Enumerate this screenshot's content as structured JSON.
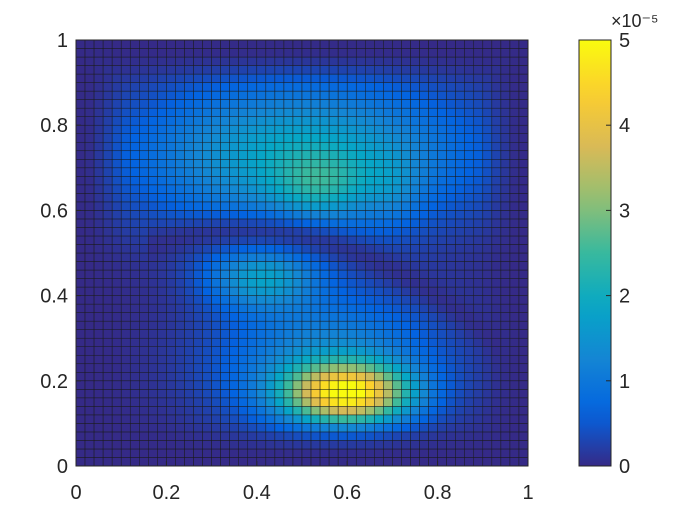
{
  "chart_data": {
    "type": "heatmap",
    "title": "",
    "xlabel": "",
    "ylabel": "",
    "xlim": [
      0,
      1
    ],
    "ylim": [
      0,
      1
    ],
    "x_ticks": [
      "0",
      "0.2",
      "0.4",
      "0.6",
      "0.8",
      "1"
    ],
    "y_ticks": [
      "0",
      "0.2",
      "0.4",
      "0.6",
      "0.8",
      "1"
    ],
    "grid": "50 x 50 mesh cells with dark edges",
    "colormap": "parula",
    "colorbar": {
      "position": "right",
      "range": [
        0,
        5e-05
      ],
      "ticks": [
        "0",
        "1",
        "2",
        "3",
        "4",
        "5"
      ],
      "exponent_label": "×10⁻⁵"
    },
    "value_scale": "×10⁻⁵",
    "field_features": [
      {
        "description": "peak",
        "x": 0.6,
        "y": 0.17,
        "value": 5.0
      },
      {
        "description": "secondary",
        "x": 0.41,
        "y": 0.44,
        "value": 2.6
      },
      {
        "description": "upper region",
        "x": 0.54,
        "y": 0.66,
        "value": 2.6
      },
      {
        "description": "low band",
        "x": 0.5,
        "y": 0.53,
        "value": 0.3
      }
    ]
  },
  "colors": {
    "parula_stops": [
      "#352a87",
      "#0363e1",
      "#1485d4",
      "#06a7c6",
      "#38b99e",
      "#92bf73",
      "#d9ba56",
      "#fcce2e",
      "#f9fb0e"
    ],
    "axis": "#262626"
  }
}
